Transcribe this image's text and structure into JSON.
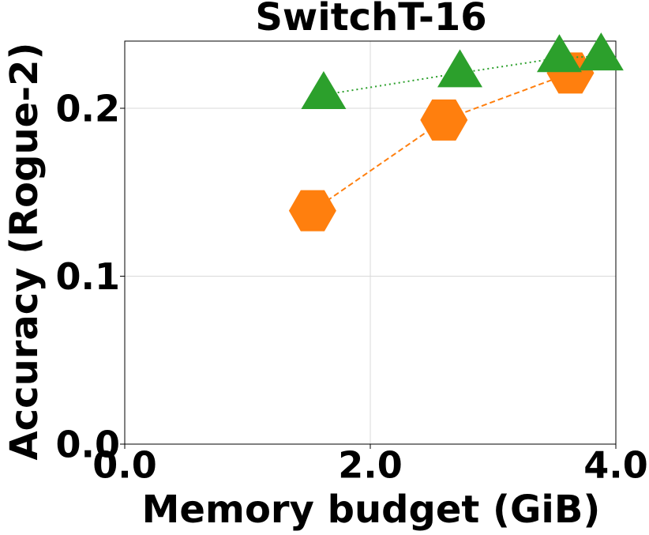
{
  "chart_data": {
    "type": "scatter",
    "title": "SwitchT-16",
    "x_label": "Memory budget (GiB)",
    "y_label": "Accuracy (Rogue-2)",
    "xlim": [
      0,
      4
    ],
    "ylim": [
      0,
      0.24
    ],
    "xticks": [
      {
        "value": 0,
        "label": "0.0"
      },
      {
        "value": 2,
        "label": "2.0"
      },
      {
        "value": 4,
        "label": "4.0"
      }
    ],
    "yticks": [
      {
        "value": 0,
        "label": "0.0"
      },
      0.1,
      0.2
    ],
    "grid": true,
    "series": [
      {
        "color": "#ff7f0e",
        "marker": "hexagon",
        "linestyle": "dashed",
        "x": [
          1.53,
          2.6,
          3.63
        ],
        "values": [
          0.139,
          0.193,
          0.221
        ]
      },
      {
        "color": "#2ca02c",
        "marker": "triangle",
        "linestyle": "dotted",
        "x": [
          1.62,
          2.73,
          3.54,
          3.88
        ],
        "values": [
          0.208,
          0.221,
          0.23,
          0.231
        ]
      }
    ]
  }
}
